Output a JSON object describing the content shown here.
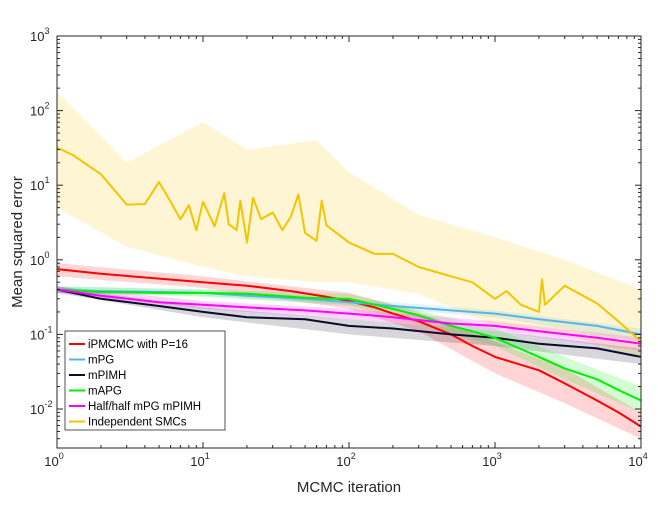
{
  "chart_data": {
    "type": "line",
    "title": "",
    "xlabel": "MCMC iteration",
    "ylabel": "Mean squared error",
    "xscale": "log",
    "yscale": "log",
    "xlim": [
      1,
      10000
    ],
    "ylim": [
      0.003,
      1000
    ],
    "x_ticks": [
      {
        "base": "10",
        "exp": "0"
      },
      {
        "base": "10",
        "exp": "1"
      },
      {
        "base": "10",
        "exp": "2"
      },
      {
        "base": "10",
        "exp": "3"
      },
      {
        "base": "10",
        "exp": "4"
      }
    ],
    "y_ticks": [
      {
        "base": "10",
        "exp": "-2"
      },
      {
        "base": "10",
        "exp": "-1"
      },
      {
        "base": "10",
        "exp": "0"
      },
      {
        "base": "10",
        "exp": "1"
      },
      {
        "base": "10",
        "exp": "2"
      },
      {
        "base": "10",
        "exp": "3"
      }
    ],
    "grid": false,
    "legend_position": "bottom-left",
    "series": [
      {
        "name": "iPMCMC with P=16",
        "color": "#ff0000",
        "points": [
          [
            1,
            0.75
          ],
          [
            2,
            0.65
          ],
          [
            5,
            0.56
          ],
          [
            10,
            0.5
          ],
          [
            20,
            0.45
          ],
          [
            40,
            0.38
          ],
          [
            70,
            0.32
          ],
          [
            100,
            0.28
          ],
          [
            150,
            0.23
          ],
          [
            200,
            0.19
          ],
          [
            300,
            0.15
          ],
          [
            500,
            0.1
          ],
          [
            700,
            0.07
          ],
          [
            1000,
            0.05
          ],
          [
            2000,
            0.033
          ],
          [
            3000,
            0.022
          ],
          [
            5000,
            0.013
          ],
          [
            7000,
            0.009
          ],
          [
            10000,
            0.0058
          ]
        ],
        "band": [
          [
            1,
            0.6,
            0.9
          ],
          [
            10,
            0.42,
            0.6
          ],
          [
            100,
            0.22,
            0.36
          ],
          [
            300,
            0.11,
            0.2
          ],
          [
            1000,
            0.03,
            0.08
          ],
          [
            3000,
            0.012,
            0.035
          ],
          [
            10000,
            0.004,
            0.009
          ]
        ]
      },
      {
        "name": "mPG",
        "color": "#56b4e9",
        "points": [
          [
            1,
            0.4
          ],
          [
            2,
            0.38
          ],
          [
            5,
            0.37
          ],
          [
            10,
            0.36
          ],
          [
            20,
            0.33
          ],
          [
            50,
            0.3
          ],
          [
            100,
            0.27
          ],
          [
            200,
            0.24
          ],
          [
            500,
            0.21
          ],
          [
            1000,
            0.19
          ],
          [
            2000,
            0.16
          ],
          [
            5000,
            0.13
          ],
          [
            10000,
            0.1
          ]
        ],
        "band": [
          [
            1,
            0.36,
            0.44
          ],
          [
            10,
            0.33,
            0.4
          ],
          [
            100,
            0.24,
            0.3
          ],
          [
            1000,
            0.17,
            0.21
          ],
          [
            10000,
            0.08,
            0.12
          ]
        ]
      },
      {
        "name": "mPIMH",
        "color": "#0b0c2a",
        "points": [
          [
            1,
            0.4
          ],
          [
            2,
            0.3
          ],
          [
            5,
            0.24
          ],
          [
            10,
            0.2
          ],
          [
            20,
            0.17
          ],
          [
            50,
            0.16
          ],
          [
            100,
            0.13
          ],
          [
            200,
            0.12
          ],
          [
            500,
            0.1
          ],
          [
            1000,
            0.09
          ],
          [
            2000,
            0.075
          ],
          [
            5000,
            0.065
          ],
          [
            10000,
            0.05
          ]
        ],
        "band": [
          [
            1,
            0.36,
            0.44
          ],
          [
            10,
            0.17,
            0.23
          ],
          [
            100,
            0.1,
            0.16
          ],
          [
            1000,
            0.07,
            0.11
          ],
          [
            10000,
            0.04,
            0.065
          ]
        ]
      },
      {
        "name": "mAPG",
        "color": "#00ee00",
        "points": [
          [
            1,
            0.4
          ],
          [
            2,
            0.37
          ],
          [
            5,
            0.36
          ],
          [
            10,
            0.36
          ],
          [
            20,
            0.35
          ],
          [
            50,
            0.31
          ],
          [
            80,
            0.3
          ],
          [
            100,
            0.3
          ],
          [
            200,
            0.22
          ],
          [
            300,
            0.18
          ],
          [
            500,
            0.13
          ],
          [
            700,
            0.11
          ],
          [
            1000,
            0.09
          ],
          [
            2000,
            0.05
          ],
          [
            3000,
            0.035
          ],
          [
            5000,
            0.025
          ],
          [
            7000,
            0.018
          ],
          [
            10000,
            0.013
          ]
        ],
        "band": [
          [
            1,
            0.36,
            0.44
          ],
          [
            10,
            0.32,
            0.4
          ],
          [
            100,
            0.25,
            0.35
          ],
          [
            1000,
            0.07,
            0.12
          ],
          [
            3000,
            0.025,
            0.05
          ],
          [
            10000,
            0.009,
            0.02
          ]
        ]
      },
      {
        "name": "Half/half mPG mPIMH",
        "color": "#ff00ff",
        "points": [
          [
            1,
            0.4
          ],
          [
            2,
            0.33
          ],
          [
            5,
            0.27
          ],
          [
            10,
            0.25
          ],
          [
            20,
            0.23
          ],
          [
            50,
            0.21
          ],
          [
            100,
            0.19
          ],
          [
            200,
            0.17
          ],
          [
            500,
            0.14
          ],
          [
            1000,
            0.13
          ],
          [
            2000,
            0.11
          ],
          [
            5000,
            0.09
          ],
          [
            10000,
            0.075
          ]
        ],
        "band": [
          [
            1,
            0.36,
            0.44
          ],
          [
            10,
            0.22,
            0.28
          ],
          [
            100,
            0.16,
            0.22
          ],
          [
            1000,
            0.11,
            0.15
          ],
          [
            10000,
            0.06,
            0.09
          ]
        ]
      },
      {
        "name": "Independent SMCs",
        "color": "#f5c400",
        "points": [
          [
            1,
            32
          ],
          [
            1.3,
            25
          ],
          [
            2,
            14
          ],
          [
            3,
            5.5
          ],
          [
            4,
            5.6
          ],
          [
            5,
            11
          ],
          [
            6,
            6
          ],
          [
            7,
            3.5
          ],
          [
            8,
            5.4
          ],
          [
            9,
            2.5
          ],
          [
            10,
            6
          ],
          [
            12,
            2.8
          ],
          [
            14,
            7.8
          ],
          [
            15,
            3
          ],
          [
            17,
            2.5
          ],
          [
            18,
            6.2
          ],
          [
            20,
            1.7
          ],
          [
            22,
            6.8
          ],
          [
            25,
            3.5
          ],
          [
            30,
            4.3
          ],
          [
            35,
            2.5
          ],
          [
            40,
            3.8
          ],
          [
            45,
            7.5
          ],
          [
            50,
            2.3
          ],
          [
            60,
            1.8
          ],
          [
            65,
            6.2
          ],
          [
            70,
            2.9
          ],
          [
            100,
            1.7
          ],
          [
            150,
            1.2
          ],
          [
            200,
            1.2
          ],
          [
            300,
            0.8
          ],
          [
            500,
            0.6
          ],
          [
            700,
            0.5
          ],
          [
            1000,
            0.3
          ],
          [
            1200,
            0.38
          ],
          [
            1500,
            0.25
          ],
          [
            2000,
            0.2
          ],
          [
            2100,
            0.55
          ],
          [
            2200,
            0.25
          ],
          [
            3000,
            0.45
          ],
          [
            5000,
            0.26
          ],
          [
            7000,
            0.15
          ],
          [
            10000,
            0.08
          ]
        ],
        "band": [
          [
            1,
            5,
            180
          ],
          [
            3,
            1.5,
            20
          ],
          [
            10,
            0.8,
            70
          ],
          [
            20,
            0.6,
            30
          ],
          [
            60,
            0.5,
            40
          ],
          [
            100,
            0.5,
            15
          ],
          [
            300,
            0.35,
            4
          ],
          [
            1000,
            0.13,
            2
          ],
          [
            3000,
            0.1,
            1
          ],
          [
            10000,
            0.05,
            0.4
          ]
        ]
      }
    ]
  }
}
